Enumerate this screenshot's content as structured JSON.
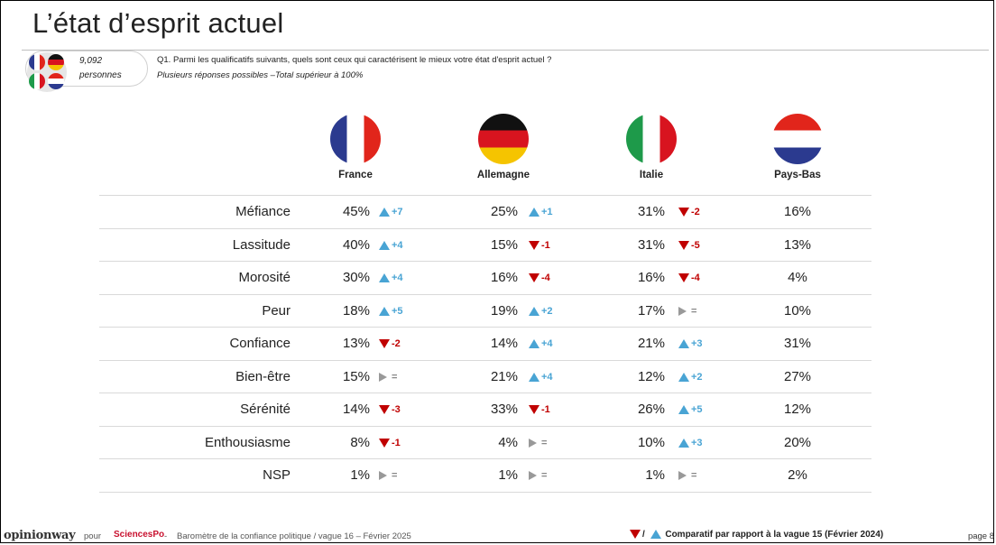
{
  "title": "L’état d’esprit actuel",
  "sample": {
    "count": "9,092",
    "label": "personnes"
  },
  "question": "Q1. Parmi les qualificatifs suivants, quels sont ceux qui caractérisent le mieux votre état d'esprit actuel ?",
  "question_note": "Plusieurs réponses possibles –Total supérieur à 100%",
  "countries": [
    "France",
    "Allemagne",
    "Italie",
    "Pays-Bas"
  ],
  "colors": {
    "up": "#49a4d4",
    "down": "#c00000",
    "equal": "#999999"
  },
  "rows": [
    {
      "label": "Méfiance",
      "cells": [
        {
          "value": "45%",
          "dir": "up",
          "change": "+7"
        },
        {
          "value": "25%",
          "dir": "up",
          "change": "+1"
        },
        {
          "value": "31%",
          "dir": "down",
          "change": "-2"
        },
        {
          "value": "16%"
        }
      ]
    },
    {
      "label": "Lassitude",
      "cells": [
        {
          "value": "40%",
          "dir": "up",
          "change": "+4"
        },
        {
          "value": "15%",
          "dir": "down",
          "change": "-1"
        },
        {
          "value": "31%",
          "dir": "down",
          "change": "-5"
        },
        {
          "value": "13%"
        }
      ]
    },
    {
      "label": "Morosité",
      "cells": [
        {
          "value": "30%",
          "dir": "up",
          "change": "+4"
        },
        {
          "value": "16%",
          "dir": "down",
          "change": "-4"
        },
        {
          "value": "16%",
          "dir": "down",
          "change": "-4"
        },
        {
          "value": "4%"
        }
      ]
    },
    {
      "label": "Peur",
      "cells": [
        {
          "value": "18%",
          "dir": "up",
          "change": "+5"
        },
        {
          "value": "19%",
          "dir": "up",
          "change": "+2"
        },
        {
          "value": "17%",
          "dir": "eq",
          "change": "="
        },
        {
          "value": "10%"
        }
      ]
    },
    {
      "label": "Confiance",
      "cells": [
        {
          "value": "13%",
          "dir": "down",
          "change": "-2"
        },
        {
          "value": "14%",
          "dir": "up",
          "change": "+4"
        },
        {
          "value": "21%",
          "dir": "up",
          "change": "+3"
        },
        {
          "value": "31%"
        }
      ]
    },
    {
      "label": "Bien-être",
      "cells": [
        {
          "value": "15%",
          "dir": "eq",
          "change": "="
        },
        {
          "value": "21%",
          "dir": "up",
          "change": "+4"
        },
        {
          "value": "12%",
          "dir": "up",
          "change": "+2"
        },
        {
          "value": "27%"
        }
      ]
    },
    {
      "label": "Sérénité",
      "cells": [
        {
          "value": "14%",
          "dir": "down",
          "change": "-3"
        },
        {
          "value": "33%",
          "dir": "down",
          "change": "-1"
        },
        {
          "value": "26%",
          "dir": "up",
          "change": "+5"
        },
        {
          "value": "12%"
        }
      ]
    },
    {
      "label": "Enthousiasme",
      "cells": [
        {
          "value": "8%",
          "dir": "down",
          "change": "-1"
        },
        {
          "value": "4%",
          "dir": "eq",
          "change": "="
        },
        {
          "value": "10%",
          "dir": "up",
          "change": "+3"
        },
        {
          "value": "20%"
        }
      ]
    },
    {
      "label": "NSP",
      "cells": [
        {
          "value": "1%",
          "dir": "eq",
          "change": "="
        },
        {
          "value": "1%",
          "dir": "eq",
          "change": "="
        },
        {
          "value": "1%",
          "dir": "eq",
          "change": "="
        },
        {
          "value": "2%"
        }
      ]
    }
  ],
  "footer": {
    "logo": "opinionway",
    "pour": "pour",
    "partner": "SciencesPo",
    "separator": "-",
    "text": "Baromètre de la confiance politique / vague 16 – Février 2025",
    "legend_slash": "/",
    "legend": "Comparatif par rapport à la vague 15 (Février 2024)",
    "page": "page 8"
  }
}
